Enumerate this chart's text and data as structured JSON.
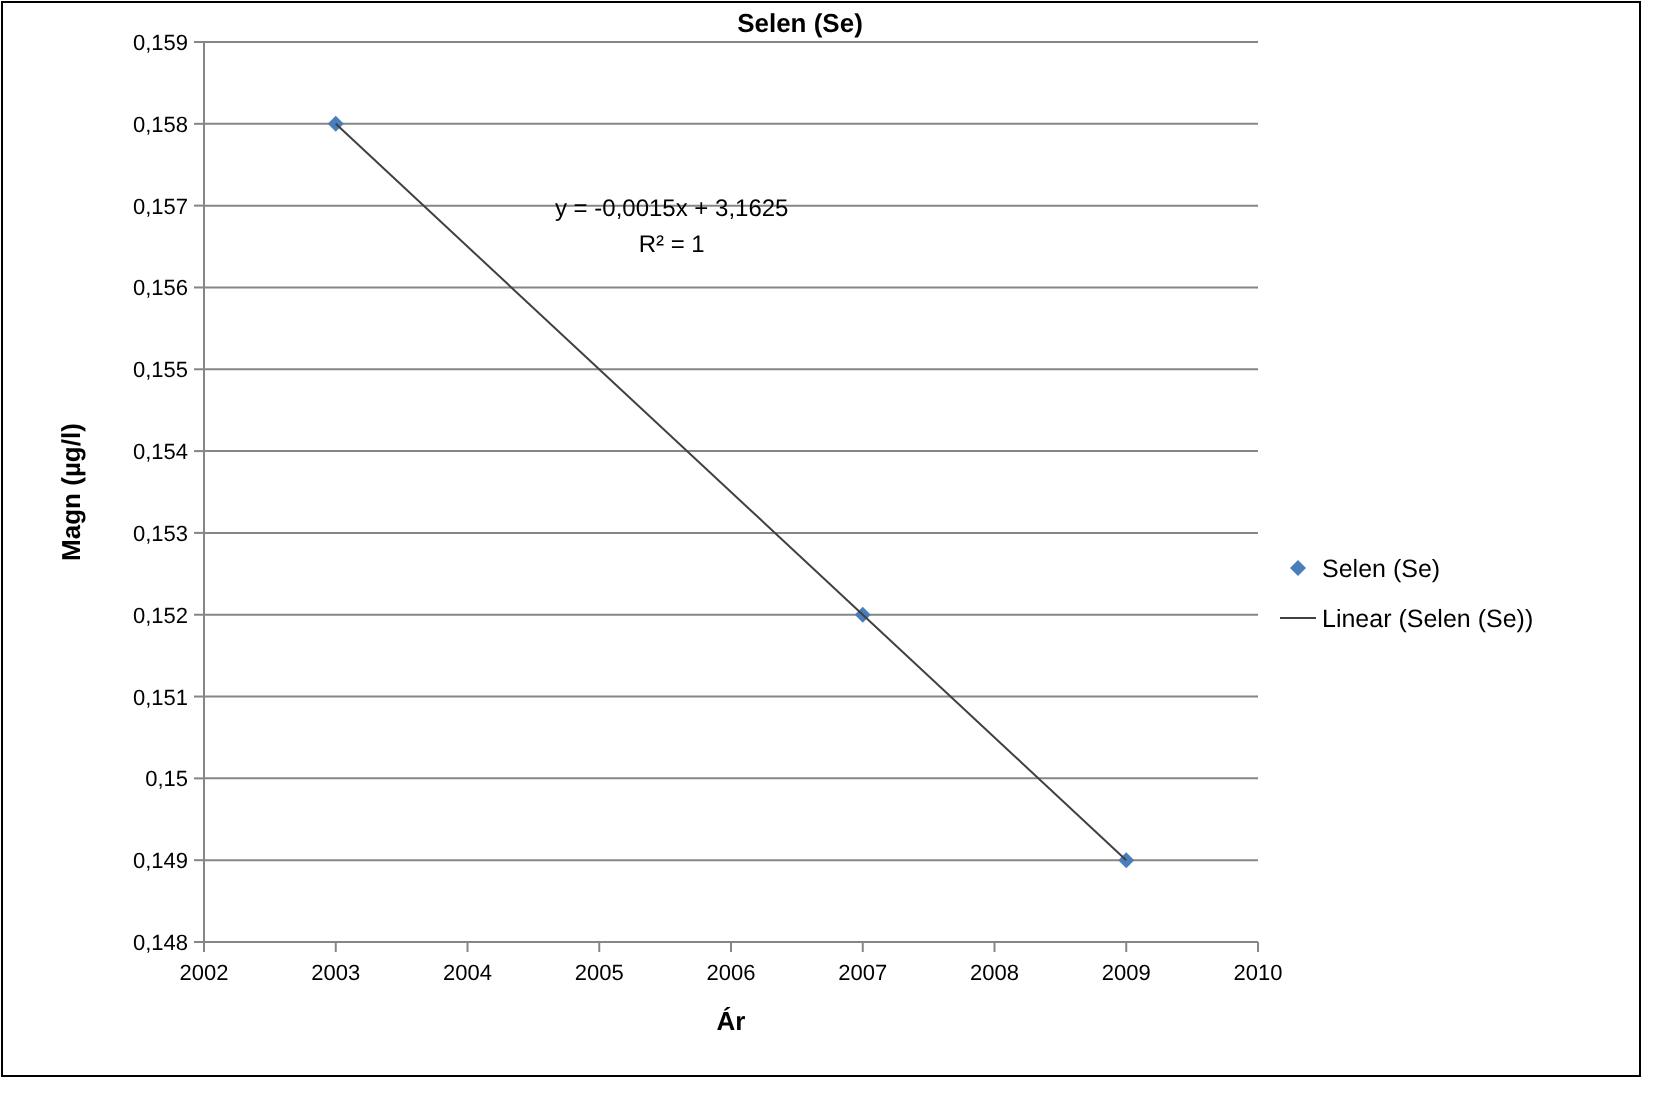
{
  "chart_data": {
    "type": "scatter",
    "title": "Selen (Se)",
    "xlabel": "Ár",
    "ylabel": "Magn (µg/l)",
    "series": [
      {
        "name": "Selen (Se)",
        "color": "#4a7ebb",
        "x": [
          2003,
          2007,
          2009
        ],
        "values": [
          0.158,
          0.152,
          0.149
        ],
        "marker": "diamond"
      },
      {
        "name": "Linear (Selen (Se))",
        "type": "line",
        "color": "#404040",
        "x": [
          2003,
          2009
        ],
        "values": [
          0.158,
          0.149
        ],
        "marker": "none"
      }
    ],
    "annotations": [
      "y = -0,0015x + 3,1625",
      "R² = 1"
    ],
    "xlim": [
      2002,
      2010
    ],
    "xticks": [
      2002,
      2003,
      2004,
      2005,
      2006,
      2007,
      2008,
      2009,
      2010
    ],
    "ylim": [
      0.148,
      0.159
    ],
    "yticks": [
      {
        "value": 0.148,
        "label": "0,148"
      },
      {
        "value": 0.149,
        "label": "0,149"
      },
      {
        "value": 0.15,
        "label": "0,15"
      },
      {
        "value": 0.151,
        "label": "0,151"
      },
      {
        "value": 0.152,
        "label": "0,152"
      },
      {
        "value": 0.153,
        "label": "0,153"
      },
      {
        "value": 0.154,
        "label": "0,154"
      },
      {
        "value": 0.155,
        "label": "0,155"
      },
      {
        "value": 0.156,
        "label": "0,156"
      },
      {
        "value": 0.157,
        "label": "0,157"
      },
      {
        "value": 0.158,
        "label": "0,158"
      },
      {
        "value": 0.159,
        "label": "0,159"
      }
    ],
    "grid": "y",
    "legend": "right"
  }
}
